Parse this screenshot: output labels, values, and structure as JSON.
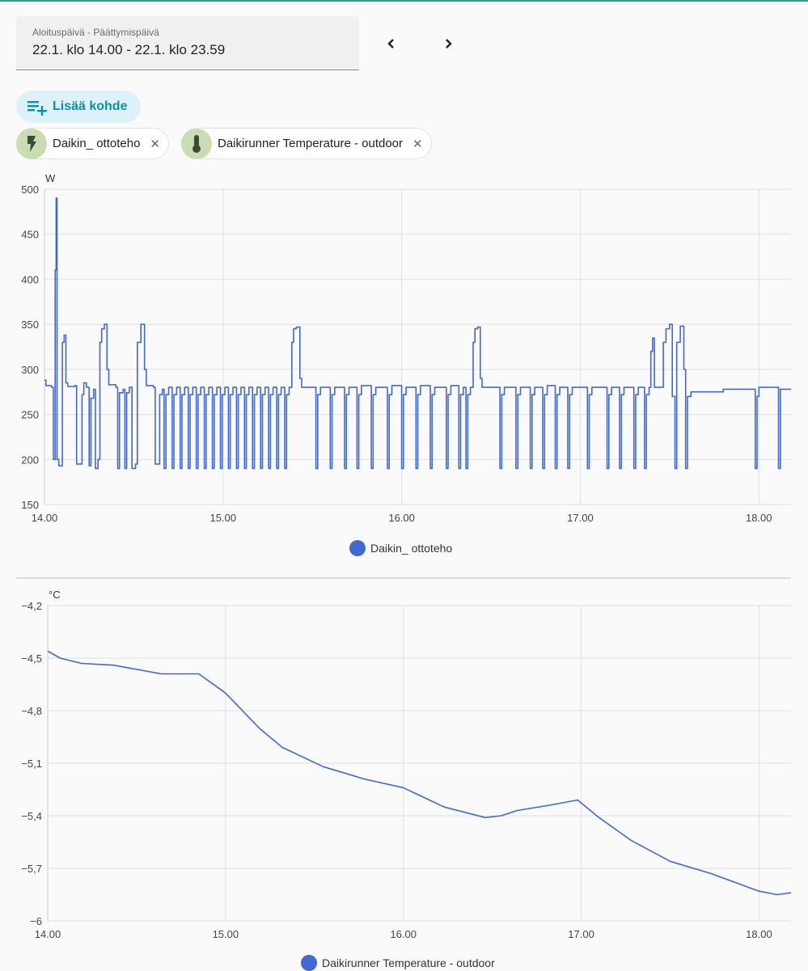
{
  "date_picker": {
    "label": "Aloituspäivä - Päättymispäivä",
    "value": "22.1. klo 14.00 - 22.1. klo 23.59"
  },
  "nav": {
    "prev_icon": "chevron-left-icon",
    "next_icon": "chevron-right-icon"
  },
  "add_button": {
    "label": "Lisää kohde",
    "icon": "playlist-plus-icon"
  },
  "chips": [
    {
      "label": "Daikin_ ottoteho",
      "icon": "flash-icon"
    },
    {
      "label": "Daikirunner Temperature - outdoor",
      "icon": "thermometer-icon"
    }
  ],
  "colors": {
    "series": "#4169d6",
    "accent": "#0b8fb0",
    "chip_icon_bg": "#c8ddb2"
  },
  "chart_data": [
    {
      "type": "line",
      "unit": "W",
      "legend": "Daikin_ ottoteho",
      "legend_placement": "bottom-center",
      "xlim": [
        14.0,
        18.18
      ],
      "ylim": [
        150,
        500
      ],
      "yticks": [
        150,
        200,
        250,
        300,
        350,
        400,
        450,
        500
      ],
      "ytick_labels": [
        "150",
        "200",
        "250",
        "300",
        "350",
        "400",
        "450",
        "500"
      ],
      "xticks": [
        14,
        15,
        16,
        17,
        18
      ],
      "xtick_labels": [
        "14.00",
        "15.00",
        "16.00",
        "17.00",
        "18.00"
      ],
      "grid": true,
      "step": true,
      "points": [
        [
          14.0,
          288
        ],
        [
          14.008,
          282
        ],
        [
          14.04,
          280
        ],
        [
          14.05,
          200
        ],
        [
          14.06,
          410
        ],
        [
          14.065,
          490
        ],
        [
          14.07,
          200
        ],
        [
          14.08,
          193
        ],
        [
          14.1,
          330
        ],
        [
          14.11,
          338
        ],
        [
          14.12,
          285
        ],
        [
          14.13,
          281
        ],
        [
          14.17,
          282
        ],
        [
          14.18,
          195
        ],
        [
          14.2,
          195
        ],
        [
          14.21,
          272
        ],
        [
          14.22,
          285
        ],
        [
          14.235,
          280
        ],
        [
          14.25,
          193
        ],
        [
          14.26,
          268
        ],
        [
          14.275,
          278
        ],
        [
          14.285,
          190
        ],
        [
          14.3,
          200
        ],
        [
          14.31,
          330
        ],
        [
          14.32,
          345
        ],
        [
          14.335,
          350
        ],
        [
          14.35,
          300
        ],
        [
          14.36,
          283
        ],
        [
          14.4,
          280
        ],
        [
          14.41,
          190
        ],
        [
          14.42,
          274
        ],
        [
          14.44,
          278
        ],
        [
          14.45,
          190
        ],
        [
          14.46,
          274
        ],
        [
          14.475,
          280
        ],
        [
          14.49,
          190
        ],
        [
          14.51,
          195
        ],
        [
          14.52,
          330
        ],
        [
          14.54,
          350
        ],
        [
          14.56,
          300
        ],
        [
          14.57,
          282
        ],
        [
          14.61,
          280
        ],
        [
          14.62,
          195
        ],
        [
          14.635,
          195
        ],
        [
          14.645,
          272
        ],
        [
          14.66,
          278
        ],
        [
          14.67,
          190
        ],
        [
          14.68,
          272
        ],
        [
          14.695,
          280
        ],
        [
          14.715,
          190
        ],
        [
          14.725,
          272
        ],
        [
          14.74,
          280
        ],
        [
          14.76,
          190
        ],
        [
          14.77,
          272
        ],
        [
          14.785,
          280
        ],
        [
          14.805,
          190
        ],
        [
          14.815,
          272
        ],
        [
          14.83,
          280
        ],
        [
          14.85,
          190
        ],
        [
          14.86,
          272
        ],
        [
          14.875,
          280
        ],
        [
          14.895,
          190
        ],
        [
          14.905,
          272
        ],
        [
          14.92,
          280
        ],
        [
          14.94,
          190
        ],
        [
          14.95,
          272
        ],
        [
          14.965,
          280
        ],
        [
          14.985,
          190
        ],
        [
          14.995,
          272
        ],
        [
          15.01,
          280
        ],
        [
          15.03,
          190
        ],
        [
          15.04,
          272
        ],
        [
          15.055,
          280
        ],
        [
          15.075,
          190
        ],
        [
          15.085,
          272
        ],
        [
          15.1,
          280
        ],
        [
          15.12,
          190
        ],
        [
          15.13,
          272
        ],
        [
          15.145,
          280
        ],
        [
          15.165,
          190
        ],
        [
          15.175,
          272
        ],
        [
          15.19,
          280
        ],
        [
          15.21,
          190
        ],
        [
          15.22,
          272
        ],
        [
          15.235,
          280
        ],
        [
          15.255,
          190
        ],
        [
          15.265,
          272
        ],
        [
          15.28,
          280
        ],
        [
          15.3,
          190
        ],
        [
          15.31,
          272
        ],
        [
          15.325,
          280
        ],
        [
          15.345,
          190
        ],
        [
          15.355,
          272
        ],
        [
          15.37,
          280
        ],
        [
          15.385,
          330
        ],
        [
          15.395,
          345
        ],
        [
          15.41,
          347
        ],
        [
          15.43,
          290
        ],
        [
          15.44,
          280
        ],
        [
          15.52,
          190
        ],
        [
          15.53,
          272
        ],
        [
          15.545,
          280
        ],
        [
          15.6,
          190
        ],
        [
          15.61,
          272
        ],
        [
          15.625,
          280
        ],
        [
          15.68,
          190
        ],
        [
          15.69,
          272
        ],
        [
          15.705,
          280
        ],
        [
          15.75,
          190
        ],
        [
          15.76,
          272
        ],
        [
          15.775,
          282
        ],
        [
          15.83,
          190
        ],
        [
          15.84,
          272
        ],
        [
          15.855,
          280
        ],
        [
          15.92,
          190
        ],
        [
          15.93,
          272
        ],
        [
          15.945,
          282
        ],
        [
          16.0,
          190
        ],
        [
          16.01,
          272
        ],
        [
          16.025,
          280
        ],
        [
          16.08,
          190
        ],
        [
          16.09,
          272
        ],
        [
          16.105,
          282
        ],
        [
          16.16,
          190
        ],
        [
          16.17,
          272
        ],
        [
          16.185,
          280
        ],
        [
          16.25,
          190
        ],
        [
          16.26,
          272
        ],
        [
          16.275,
          282
        ],
        [
          16.32,
          190
        ],
        [
          16.33,
          272
        ],
        [
          16.345,
          280
        ],
        [
          16.36,
          190
        ],
        [
          16.37,
          272
        ],
        [
          16.385,
          280
        ],
        [
          16.4,
          330
        ],
        [
          16.41,
          345
        ],
        [
          16.425,
          347
        ],
        [
          16.44,
          290
        ],
        [
          16.45,
          280
        ],
        [
          16.55,
          190
        ],
        [
          16.56,
          272
        ],
        [
          16.575,
          280
        ],
        [
          16.64,
          190
        ],
        [
          16.65,
          272
        ],
        [
          16.665,
          280
        ],
        [
          16.72,
          190
        ],
        [
          16.73,
          272
        ],
        [
          16.745,
          280
        ],
        [
          16.79,
          190
        ],
        [
          16.8,
          272
        ],
        [
          16.815,
          282
        ],
        [
          16.86,
          190
        ],
        [
          16.87,
          272
        ],
        [
          16.885,
          280
        ],
        [
          16.93,
          190
        ],
        [
          16.94,
          272
        ],
        [
          16.955,
          280
        ],
        [
          17.04,
          190
        ],
        [
          17.05,
          272
        ],
        [
          17.065,
          280
        ],
        [
          17.15,
          190
        ],
        [
          17.16,
          272
        ],
        [
          17.175,
          280
        ],
        [
          17.22,
          190
        ],
        [
          17.23,
          272
        ],
        [
          17.245,
          280
        ],
        [
          17.3,
          190
        ],
        [
          17.31,
          272
        ],
        [
          17.325,
          280
        ],
        [
          17.36,
          190
        ],
        [
          17.37,
          272
        ],
        [
          17.385,
          280
        ],
        [
          17.395,
          320
        ],
        [
          17.405,
          335
        ],
        [
          17.415,
          280
        ],
        [
          17.465,
          330
        ],
        [
          17.48,
          345
        ],
        [
          17.5,
          350
        ],
        [
          17.515,
          270
        ],
        [
          17.53,
          190
        ],
        [
          17.54,
          330
        ],
        [
          17.56,
          348
        ],
        [
          17.58,
          300
        ],
        [
          17.59,
          190
        ],
        [
          17.6,
          270
        ],
        [
          17.62,
          275
        ],
        [
          17.8,
          278
        ],
        [
          17.98,
          190
        ],
        [
          17.99,
          270
        ],
        [
          18.0,
          280
        ],
        [
          18.11,
          190
        ],
        [
          18.12,
          278
        ],
        [
          18.18,
          278
        ]
      ]
    },
    {
      "type": "line",
      "unit": "°C",
      "legend": "Daikirunner Temperature - outdoor",
      "legend_placement": "bottom-center",
      "xlim": [
        14.0,
        18.18
      ],
      "ylim": [
        -6.0,
        -4.2
      ],
      "yticks": [
        -6.0,
        -5.7,
        -5.4,
        -5.1,
        -4.8,
        -4.5,
        -4.2
      ],
      "ytick_labels": [
        "−6",
        "−5,7",
        "−5,4",
        "−5,1",
        "−4,8",
        "−4,5",
        "−4,2"
      ],
      "xticks": [
        14,
        15,
        16,
        17,
        18
      ],
      "xtick_labels": [
        "14.00",
        "15.00",
        "16.00",
        "17.00",
        "18.00"
      ],
      "grid": true,
      "step": false,
      "points": [
        [
          14.0,
          -4.46
        ],
        [
          14.07,
          -4.5
        ],
        [
          14.19,
          -4.53
        ],
        [
          14.37,
          -4.54
        ],
        [
          14.64,
          -4.59
        ],
        [
          14.85,
          -4.59
        ],
        [
          15.0,
          -4.7
        ],
        [
          15.19,
          -4.9
        ],
        [
          15.32,
          -5.01
        ],
        [
          15.55,
          -5.12
        ],
        [
          15.78,
          -5.19
        ],
        [
          16.0,
          -5.24
        ],
        [
          16.23,
          -5.35
        ],
        [
          16.46,
          -5.41
        ],
        [
          16.55,
          -5.4
        ],
        [
          16.64,
          -5.37
        ],
        [
          16.82,
          -5.34
        ],
        [
          16.98,
          -5.31
        ],
        [
          17.1,
          -5.41
        ],
        [
          17.28,
          -5.54
        ],
        [
          17.5,
          -5.66
        ],
        [
          17.73,
          -5.73
        ],
        [
          18.0,
          -5.83
        ],
        [
          18.1,
          -5.85
        ],
        [
          18.18,
          -5.84
        ]
      ]
    }
  ]
}
